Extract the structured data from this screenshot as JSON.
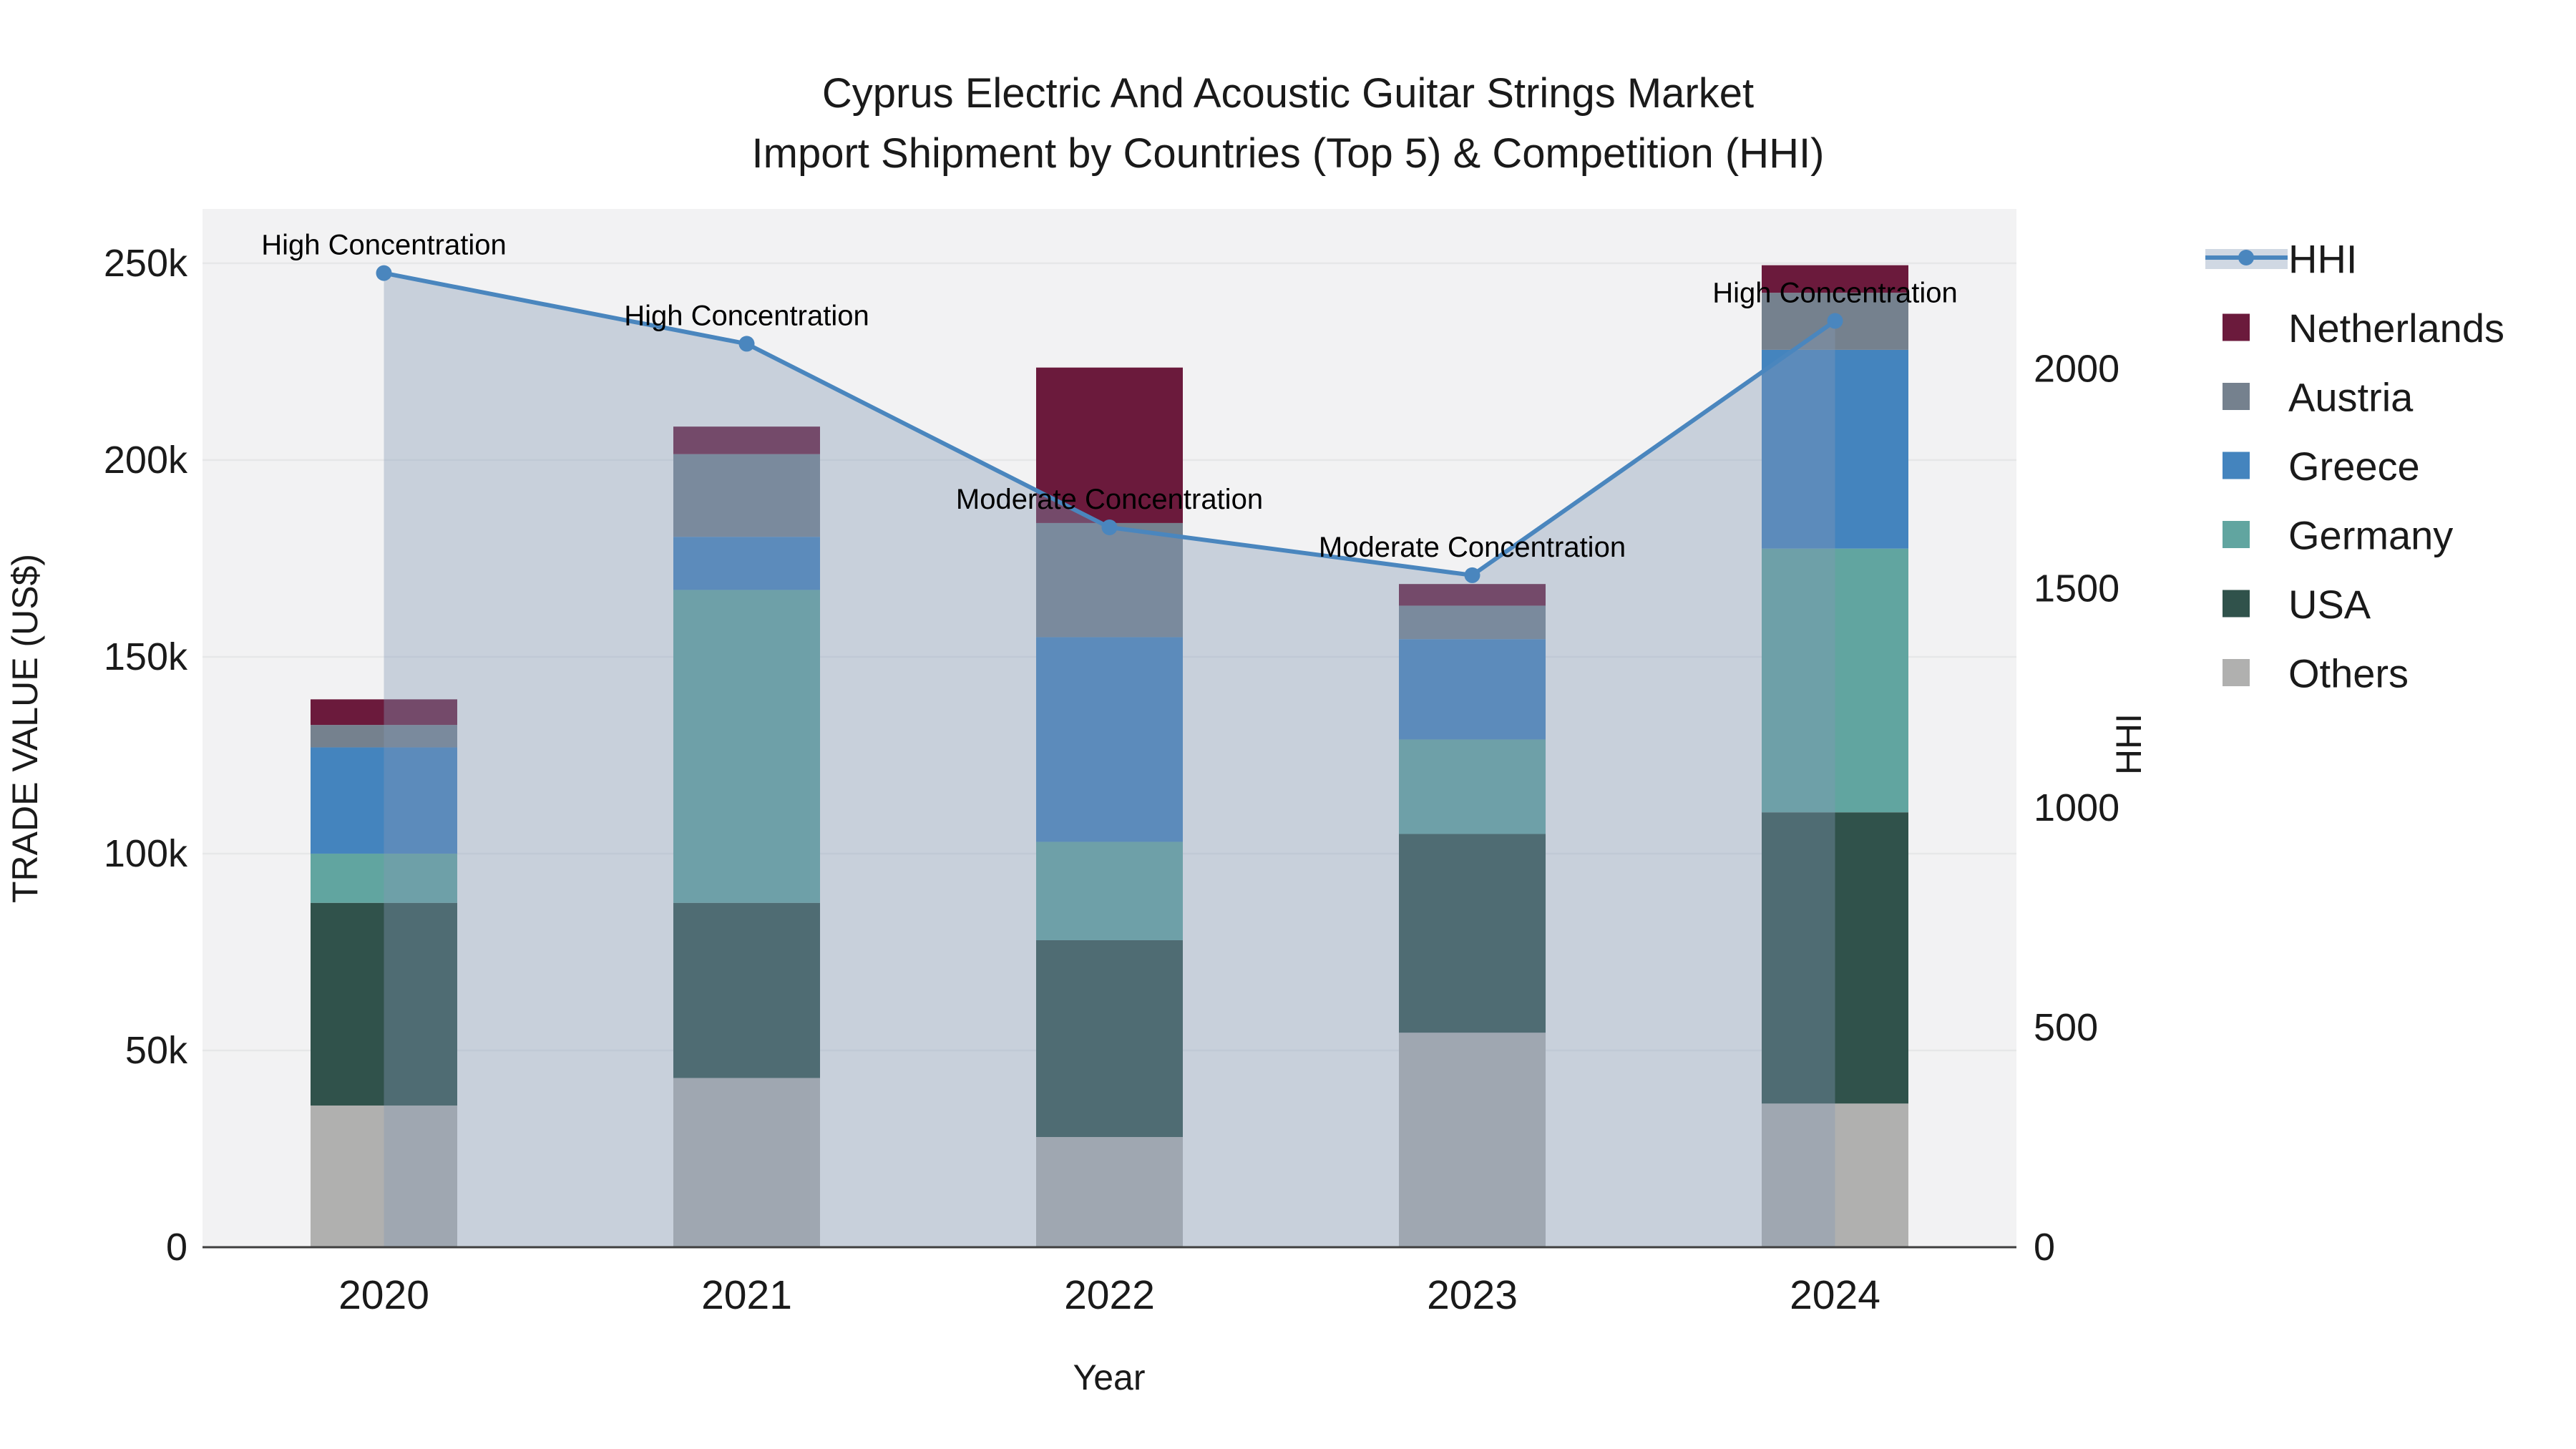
{
  "title": {
    "line1": "Cyprus Electric And Acoustic Guitar Strings Market",
    "line2": "Import Shipment by Countries (Top 5) & Competition (HHI)"
  },
  "styles": {
    "plot_bg": "#f2f2f3",
    "grid_color": "#e6e7e8",
    "axis_line_color": "#3f3f3f",
    "text_color": "#1a1a1a"
  },
  "chart_data": {
    "type": "stacked-bar+line",
    "categories": [
      "2020",
      "2021",
      "2022",
      "2023",
      "2024"
    ],
    "bar_value_unit": "US$",
    "series": [
      {
        "name": "Others",
        "color": "#b0b0af",
        "values": [
          36000,
          43000,
          28000,
          54500,
          36500
        ]
      },
      {
        "name": "USA",
        "color": "#30524b",
        "values": [
          51500,
          44500,
          50000,
          50500,
          74000
        ]
      },
      {
        "name": "Germany",
        "color": "#61a5a0",
        "values": [
          12500,
          79500,
          25000,
          24000,
          67000
        ]
      },
      {
        "name": "Greece",
        "color": "#4484be",
        "values": [
          27000,
          13500,
          52000,
          25500,
          50500
        ]
      },
      {
        "name": "Austria",
        "color": "#75818e",
        "values": [
          5700,
          21000,
          29000,
          8500,
          14500
        ]
      },
      {
        "name": "Netherlands",
        "color": "#6b1a3c",
        "values": [
          6500,
          7000,
          39500,
          5500,
          7000
        ]
      }
    ],
    "bar_totals": [
      139200,
      208500,
      223500,
      168500,
      249500
    ],
    "line_series": {
      "name": "HHI",
      "color": "#4a86be",
      "area_fill": "rgba(131,153,181,0.38)",
      "values": [
        2218,
        2057,
        1639,
        1530,
        2109
      ],
      "axis": "right"
    },
    "annotations": [
      "High Concentration",
      "High Concentration",
      "Moderate Concentration",
      "Moderate Concentration",
      "High Concentration"
    ],
    "left_axis": {
      "title": "TRADE VALUE (US$)",
      "tick_values": [
        0,
        50000,
        100000,
        150000,
        200000,
        250000
      ],
      "tick_labels": [
        "0",
        "50k",
        "100k",
        "150k",
        "200k",
        "250k"
      ],
      "range": [
        0,
        263800
      ],
      "grid": true
    },
    "right_axis": {
      "title": "HHI",
      "tick_values": [
        0,
        500,
        1000,
        1500,
        2000
      ],
      "tick_labels": [
        "0",
        "500",
        "1000",
        "1500",
        "2000"
      ],
      "range": [
        0,
        2364
      ],
      "grid": false
    },
    "x_axis": {
      "title": "Year"
    },
    "legend": {
      "position": "right",
      "items": [
        "HHI",
        "Netherlands",
        "Austria",
        "Greece",
        "Germany",
        "USA",
        "Others"
      ]
    }
  }
}
